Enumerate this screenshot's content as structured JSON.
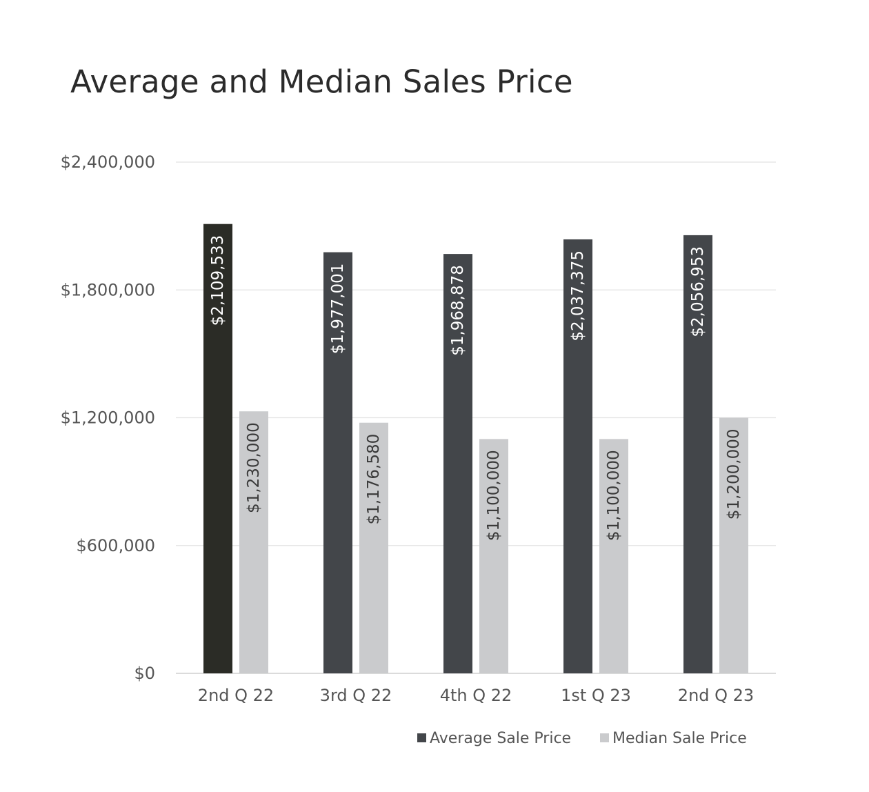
{
  "chart_data": {
    "type": "bar",
    "title": "Average and Median Sales Price",
    "xlabel": "",
    "ylabel": "",
    "categories": [
      "2nd Q 22",
      "3rd Q 22",
      "4th Q 22",
      "1st Q 23",
      "2nd Q 23"
    ],
    "series": [
      {
        "name": "Average Sale Price",
        "values": [
          2109533,
          1977001,
          1968878,
          2037375,
          2056953
        ],
        "labels": [
          "$2,109,533",
          "$1,977,001",
          "$1,968,878",
          "$2,037,375",
          "$2,056,953"
        ],
        "color": "#43464a",
        "highlight_color": "#2b2c26"
      },
      {
        "name": "Median Sale Price",
        "values": [
          1230000,
          1176580,
          1100000,
          1100000,
          1200000
        ],
        "labels": [
          "$1,230,000",
          "$1,176,580",
          "$1,100,000",
          "$1,100,000",
          "$1,200,000"
        ],
        "color": "#cacbcd"
      }
    ],
    "ylim": [
      0,
      2400000
    ],
    "yticks": [
      0,
      600000,
      1200000,
      1800000,
      2400000
    ],
    "ytick_labels": [
      "$0",
      "$600,000",
      "$1,200,000",
      "$1,800,000",
      "$2,400,000"
    ],
    "grid": true,
    "legend_position": "bottom-right",
    "data_labels": "inside-rotated"
  }
}
